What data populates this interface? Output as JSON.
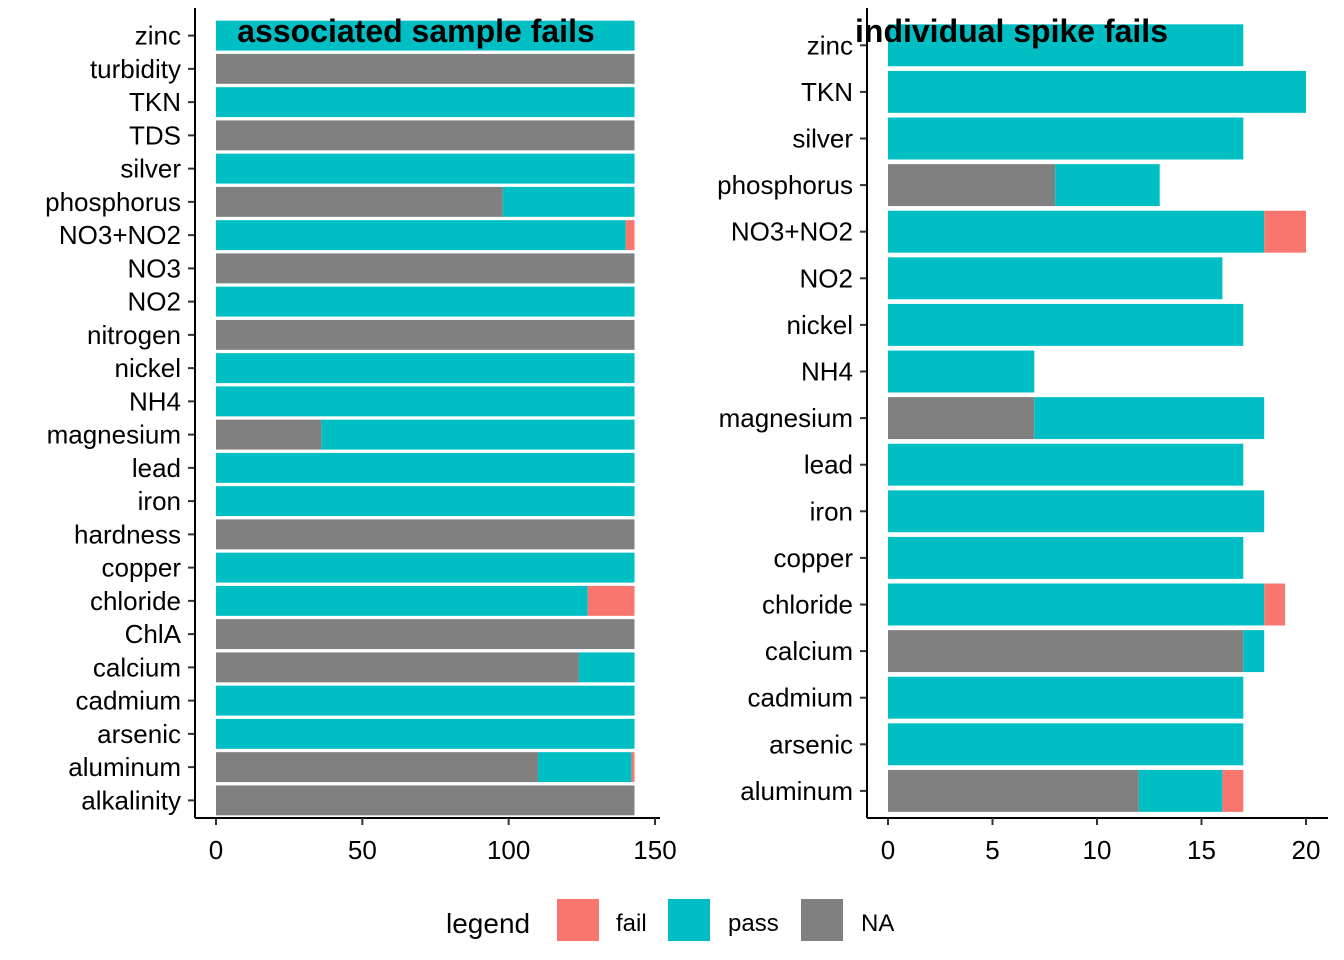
{
  "chart_data": [
    {
      "type": "bar",
      "orientation": "horizontal",
      "stacked": true,
      "title": "associated sample fails",
      "xlim": [
        0,
        150
      ],
      "xticks": [
        0,
        50,
        100,
        150
      ],
      "categories": [
        "zinc",
        "turbidity",
        "TKN",
        "TDS",
        "silver",
        "phosphorus",
        "NO3+NO2",
        "NO3",
        "NO2",
        "nitrogen",
        "nickel",
        "NH4",
        "magnesium",
        "lead",
        "iron",
        "hardness",
        "copper",
        "chloride",
        "ChlA",
        "calcium",
        "cadmium",
        "arsenic",
        "aluminum",
        "alkalinity"
      ],
      "series": [
        {
          "name": "NA",
          "color": "#808080",
          "values": [
            0,
            143,
            0,
            143,
            0,
            98,
            0,
            143,
            0,
            143,
            0,
            0,
            36,
            0,
            0,
            143,
            0,
            0,
            143,
            124,
            0,
            0,
            110,
            143
          ]
        },
        {
          "name": "pass",
          "color": "#00BFC4",
          "values": [
            143,
            0,
            143,
            0,
            143,
            45,
            140,
            0,
            143,
            0,
            143,
            143,
            107,
            143,
            143,
            0,
            143,
            127,
            0,
            19,
            143,
            143,
            32,
            0
          ]
        },
        {
          "name": "fail",
          "color": "#F8766D",
          "values": [
            0,
            0,
            0,
            0,
            0,
            0,
            3,
            0,
            0,
            0,
            0,
            0,
            0,
            0,
            0,
            0,
            0,
            16,
            0,
            0,
            0,
            0,
            1,
            0
          ]
        }
      ]
    },
    {
      "type": "bar",
      "orientation": "horizontal",
      "stacked": true,
      "title": "individual spike fails",
      "xlim": [
        0,
        20.5
      ],
      "xticks": [
        0,
        5,
        10,
        15,
        20
      ],
      "categories": [
        "zinc",
        "TKN",
        "silver",
        "phosphorus",
        "NO3+NO2",
        "NO2",
        "nickel",
        "NH4",
        "magnesium",
        "lead",
        "iron",
        "copper",
        "chloride",
        "calcium",
        "cadmium",
        "arsenic",
        "aluminum"
      ],
      "series": [
        {
          "name": "NA",
          "color": "#808080",
          "values": [
            0,
            0,
            0,
            8,
            0,
            0,
            0,
            0,
            7,
            0,
            0,
            0,
            0,
            17,
            0,
            0,
            12
          ]
        },
        {
          "name": "pass",
          "color": "#00BFC4",
          "values": [
            17,
            20,
            17,
            5,
            18,
            16,
            17,
            7,
            11,
            17,
            18,
            17,
            18,
            1,
            17,
            17,
            4
          ]
        },
        {
          "name": "fail",
          "color": "#F8766D",
          "values": [
            0,
            0,
            0,
            0,
            2,
            0,
            0,
            0,
            0,
            0,
            0,
            0,
            1,
            0,
            0,
            0,
            1
          ]
        }
      ]
    }
  ],
  "legend": {
    "title": "legend",
    "position": "bottom",
    "items": [
      {
        "label": "fail",
        "color": "#F8766D"
      },
      {
        "label": "pass",
        "color": "#00BFC4"
      },
      {
        "label": "NA",
        "color": "#808080"
      }
    ]
  }
}
